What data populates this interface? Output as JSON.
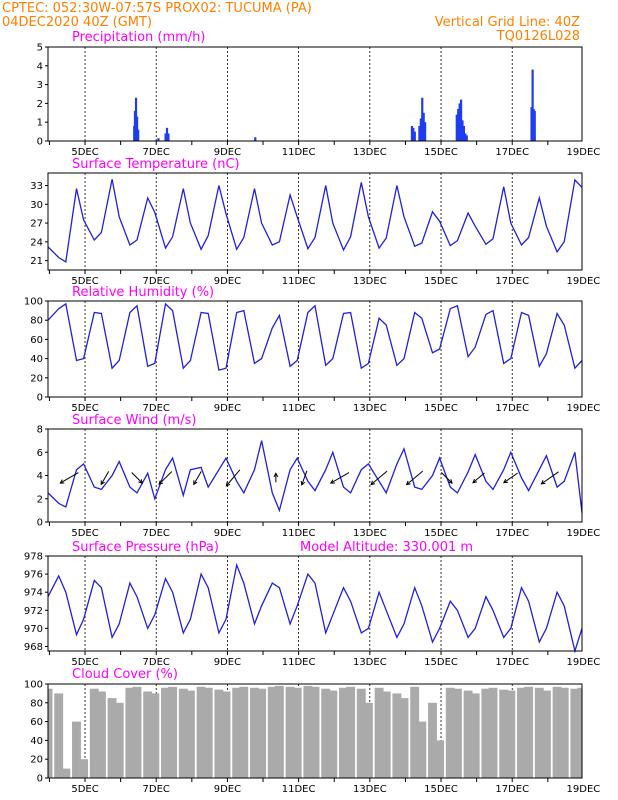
{
  "header": {
    "line1_left": "CPTEC:   052:30W-07:57S   PROX02: TUCUMA (PA)",
    "line2_left": "04DEC2020 40Z (GMT)",
    "line2_right": "Vertical Grid Line: 40Z",
    "line3_right": "TQ0126L028"
  },
  "date_labels": [
    "5DEC",
    "7DEC",
    "9DEC",
    "11DEC",
    "13DEC",
    "15DEC",
    "17DEC",
    "19DEC"
  ],
  "colors": {
    "title": "#ff00ff",
    "header": "#ff7f00",
    "line": "#2020dd",
    "bar": "#1e3cf0",
    "cloud": "#aaaaaa",
    "arrow": "#000000"
  },
  "chart_data": [
    {
      "type": "bar",
      "title": "Precipitation (mm/h)",
      "ylim": [
        0,
        5
      ],
      "yticks": [
        "0",
        "1",
        "2",
        "3",
        "4",
        "5"
      ],
      "x_unit": "day",
      "xlim": [
        4.0,
        19.0
      ],
      "x": [
        6.42,
        6.44,
        6.47,
        6.5,
        6.53,
        7.1,
        7.3,
        7.34,
        7.38,
        9.82,
        14.22,
        14.26,
        14.3,
        14.43,
        14.47,
        14.51,
        14.55,
        14.59,
        15.48,
        15.52,
        15.56,
        15.6,
        15.64,
        15.68,
        15.72,
        15.76,
        17.58,
        17.61,
        17.64,
        17.67
      ],
      "values": [
        0.8,
        1.6,
        2.3,
        1.3,
        0.6,
        0.15,
        0.4,
        0.7,
        0.4,
        0.2,
        0.8,
        0.7,
        0.5,
        0.8,
        1.2,
        2.3,
        1.5,
        1.0,
        1.4,
        1.7,
        2.0,
        2.2,
        1.1,
        0.8,
        0.4,
        0.3,
        1.8,
        3.8,
        1.7,
        1.6
      ]
    },
    {
      "type": "line",
      "title": "Surface Temperature (nC)",
      "ylim": [
        19.5,
        35
      ],
      "yticks": [
        "21",
        "24",
        "27",
        "30",
        "33"
      ],
      "x_unit": "day",
      "xlim": [
        4.0,
        19.0
      ],
      "x": [
        4.0,
        4.3,
        4.5,
        4.8,
        5.0,
        5.3,
        5.5,
        5.8,
        6.0,
        6.3,
        6.5,
        6.8,
        7.0,
        7.3,
        7.5,
        7.8,
        8.0,
        8.3,
        8.5,
        8.8,
        9.0,
        9.3,
        9.5,
        9.8,
        10.0,
        10.3,
        10.5,
        10.8,
        11.0,
        11.3,
        11.5,
        11.8,
        12.0,
        12.3,
        12.5,
        12.8,
        13.0,
        13.3,
        13.5,
        13.8,
        14.0,
        14.3,
        14.5,
        14.8,
        15.0,
        15.3,
        15.5,
        15.8,
        16.0,
        16.3,
        16.5,
        16.8,
        17.0,
        17.3,
        17.5,
        17.8,
        18.0,
        18.3,
        18.5,
        18.8,
        19.0
      ],
      "values": [
        23.2,
        21.5,
        20.8,
        32.5,
        27.5,
        24.3,
        25.5,
        34.0,
        28.0,
        23.5,
        24.3,
        31.0,
        28.7,
        23.0,
        24.8,
        32.5,
        27.0,
        22.8,
        25.0,
        33.0,
        28.5,
        22.8,
        24.7,
        32.5,
        27.0,
        23.5,
        24.0,
        31.5,
        28.0,
        22.9,
        24.7,
        33.0,
        27.0,
        22.7,
        24.8,
        33.5,
        28.0,
        23.0,
        24.6,
        33.0,
        28.0,
        23.3,
        23.8,
        28.8,
        27.3,
        23.4,
        24.2,
        28.6,
        26.5,
        23.6,
        24.5,
        32.8,
        27.0,
        23.5,
        24.7,
        31.0,
        26.5,
        22.4,
        24.0,
        33.9,
        32.7
      ]
    },
    {
      "type": "line",
      "title": "Relative Humidity (%)",
      "ylim": [
        0,
        100
      ],
      "yticks": [
        "0",
        "20",
        "40",
        "60",
        "80",
        "100"
      ],
      "x_unit": "day",
      "xlim": [
        4.0,
        19.0
      ],
      "x": [
        4.0,
        4.3,
        4.5,
        4.8,
        5.0,
        5.3,
        5.5,
        5.8,
        6.0,
        6.3,
        6.5,
        6.8,
        7.0,
        7.3,
        7.5,
        7.8,
        8.0,
        8.3,
        8.5,
        8.8,
        9.0,
        9.3,
        9.5,
        9.8,
        10.0,
        10.3,
        10.5,
        10.8,
        11.0,
        11.3,
        11.5,
        11.8,
        12.0,
        12.3,
        12.5,
        12.8,
        13.0,
        13.3,
        13.5,
        13.8,
        14.0,
        14.3,
        14.5,
        14.8,
        15.0,
        15.3,
        15.5,
        15.8,
        16.0,
        16.3,
        16.5,
        16.8,
        17.0,
        17.3,
        17.5,
        17.8,
        18.0,
        18.3,
        18.5,
        18.8,
        19.0
      ],
      "values": [
        80,
        92,
        97,
        38,
        40,
        88,
        87,
        30,
        38,
        88,
        95,
        32,
        35,
        97,
        90,
        30,
        38,
        88,
        87,
        28,
        30,
        88,
        90,
        35,
        40,
        72,
        85,
        32,
        38,
        88,
        95,
        33,
        40,
        87,
        88,
        30,
        35,
        82,
        75,
        33,
        40,
        88,
        82,
        46,
        50,
        92,
        95,
        42,
        52,
        86,
        90,
        35,
        40,
        88,
        85,
        32,
        45,
        87,
        75,
        30,
        38
      ]
    },
    {
      "type": "line",
      "title": "Surface Wind (m/s)",
      "ylim": [
        0,
        8
      ],
      "yticks": [
        "0",
        "2",
        "4",
        "6",
        "8"
      ],
      "x_unit": "day",
      "xlim": [
        4.0,
        19.0
      ],
      "x": [
        4.0,
        4.3,
        4.5,
        4.8,
        5.0,
        5.3,
        5.5,
        5.8,
        6.0,
        6.3,
        6.5,
        6.8,
        7.0,
        7.3,
        7.5,
        7.8,
        8.0,
        8.3,
        8.5,
        8.8,
        9.0,
        9.3,
        9.5,
        9.8,
        10.0,
        10.3,
        10.5,
        10.8,
        11.0,
        11.3,
        11.5,
        11.8,
        12.0,
        12.3,
        12.5,
        12.8,
        13.0,
        13.3,
        13.5,
        13.8,
        14.0,
        14.3,
        14.5,
        14.8,
        15.0,
        15.3,
        15.5,
        15.8,
        16.0,
        16.3,
        16.5,
        16.8,
        17.0,
        17.3,
        17.5,
        17.8,
        18.0,
        18.3,
        18.5,
        18.8,
        19.0
      ],
      "values": [
        2.5,
        1.6,
        1.3,
        4.5,
        5.0,
        3.0,
        2.8,
        4.0,
        5.2,
        3.0,
        2.5,
        4.2,
        2.0,
        4.5,
        5.5,
        2.3,
        4.5,
        4.7,
        3.0,
        4.5,
        5.5,
        3.5,
        2.5,
        4.5,
        7.0,
        2.5,
        1.0,
        4.5,
        5.5,
        3.5,
        2.7,
        4.5,
        6.0,
        3.0,
        2.5,
        4.5,
        5.0,
        3.5,
        2.5,
        5.0,
        6.3,
        3.0,
        2.8,
        4.0,
        5.5,
        3.0,
        2.5,
        4.3,
        5.8,
        3.5,
        2.8,
        4.5,
        6.0,
        3.8,
        2.7,
        4.5,
        5.7,
        3.0,
        3.5,
        6.0,
        0.8
      ],
      "wind_arrows": [
        {
          "x": 4.6,
          "dir_deg": 210,
          "speed": 2.5
        },
        {
          "x": 5.6,
          "dir_deg": 240,
          "speed": 1.5
        },
        {
          "x": 6.5,
          "dir_deg": 315,
          "speed": 1.5
        },
        {
          "x": 7.3,
          "dir_deg": 225,
          "speed": 2.0
        },
        {
          "x": 8.2,
          "dir_deg": 240,
          "speed": 1.5
        },
        {
          "x": 9.2,
          "dir_deg": 230,
          "speed": 2.5
        },
        {
          "x": 10.4,
          "dir_deg": 90,
          "speed": 0.5
        },
        {
          "x": 11.2,
          "dir_deg": 250,
          "speed": 1.5
        },
        {
          "x": 12.2,
          "dir_deg": 210,
          "speed": 2.5
        },
        {
          "x": 13.3,
          "dir_deg": 220,
          "speed": 2.5
        },
        {
          "x": 14.3,
          "dir_deg": 220,
          "speed": 2.5
        },
        {
          "x": 15.2,
          "dir_deg": 315,
          "speed": 1.5
        },
        {
          "x": 16.1,
          "dir_deg": 220,
          "speed": 1.5
        },
        {
          "x": 17.0,
          "dir_deg": 215,
          "speed": 1.8
        },
        {
          "x": 18.1,
          "dir_deg": 215,
          "speed": 2.5
        }
      ]
    },
    {
      "type": "line",
      "title": "Surface Pressure (hPa)",
      "subtitle": "Model Altitude: 330.001 m",
      "ylim": [
        967.5,
        978
      ],
      "yticks": [
        "968",
        "970",
        "972",
        "974",
        "976",
        "978"
      ],
      "x_unit": "day",
      "xlim": [
        4.0,
        19.0
      ],
      "x": [
        4.0,
        4.3,
        4.5,
        4.8,
        5.0,
        5.3,
        5.5,
        5.8,
        6.0,
        6.3,
        6.5,
        6.8,
        7.0,
        7.3,
        7.5,
        7.8,
        8.0,
        8.3,
        8.5,
        8.8,
        9.0,
        9.3,
        9.5,
        9.8,
        10.0,
        10.3,
        10.5,
        10.8,
        11.0,
        11.3,
        11.5,
        11.8,
        12.0,
        12.3,
        12.5,
        12.8,
        13.0,
        13.3,
        13.5,
        13.8,
        14.0,
        14.3,
        14.5,
        14.8,
        15.0,
        15.3,
        15.5,
        15.8,
        16.0,
        16.3,
        16.5,
        16.8,
        17.0,
        17.3,
        17.5,
        17.8,
        18.0,
        18.3,
        18.5,
        18.8,
        19.0
      ],
      "values": [
        973.5,
        975.8,
        974.0,
        969.3,
        971.0,
        975.3,
        974.5,
        969.0,
        970.5,
        975.0,
        973.5,
        970.0,
        971.5,
        975.5,
        974.0,
        969.5,
        971.0,
        976.0,
        974.5,
        969.5,
        971.0,
        977.0,
        975.0,
        970.5,
        972.5,
        975.0,
        974.5,
        970.5,
        972.5,
        976.0,
        975.0,
        969.5,
        971.5,
        974.5,
        973.0,
        969.5,
        970.0,
        974.0,
        972.0,
        969.0,
        970.5,
        974.5,
        972.5,
        968.5,
        970.0,
        973.0,
        972.0,
        969.0,
        970.0,
        973.5,
        972.0,
        969.0,
        970.0,
        974.5,
        973.0,
        968.5,
        970.0,
        974.0,
        972.5,
        967.5,
        970.0
      ]
    },
    {
      "type": "area",
      "title": "Cloud Cover (%)",
      "ylim": [
        0,
        100
      ],
      "yticks": [
        "0",
        "20",
        "40",
        "60",
        "80",
        "100"
      ],
      "x_unit": "day",
      "xlim": [
        4.0,
        19.0
      ],
      "x": [
        4.0,
        4.3,
        4.5,
        4.8,
        5.0,
        5.3,
        5.5,
        5.8,
        6.0,
        6.3,
        6.5,
        6.8,
        7.0,
        7.3,
        7.5,
        7.8,
        8.0,
        8.3,
        8.5,
        8.8,
        9.0,
        9.3,
        9.5,
        9.8,
        10.0,
        10.3,
        10.5,
        10.8,
        11.0,
        11.3,
        11.5,
        11.8,
        12.0,
        12.3,
        12.5,
        12.8,
        13.0,
        13.3,
        13.5,
        13.8,
        14.0,
        14.3,
        14.5,
        14.8,
        15.0,
        15.3,
        15.5,
        15.8,
        16.0,
        16.3,
        16.5,
        16.8,
        17.0,
        17.3,
        17.5,
        17.8,
        18.0,
        18.3,
        18.5,
        18.8,
        19.0
      ],
      "values": [
        95,
        90,
        10,
        60,
        20,
        95,
        92,
        85,
        80,
        96,
        97,
        92,
        90,
        96,
        97,
        95,
        93,
        97,
        96,
        94,
        92,
        96,
        97,
        96,
        95,
        97,
        98,
        97,
        96,
        98,
        97,
        95,
        93,
        96,
        97,
        95,
        80,
        96,
        92,
        90,
        85,
        97,
        60,
        80,
        40,
        96,
        95,
        93,
        90,
        95,
        96,
        94,
        93,
        96,
        97,
        96,
        93,
        97,
        96,
        95,
        96
      ]
    }
  ]
}
